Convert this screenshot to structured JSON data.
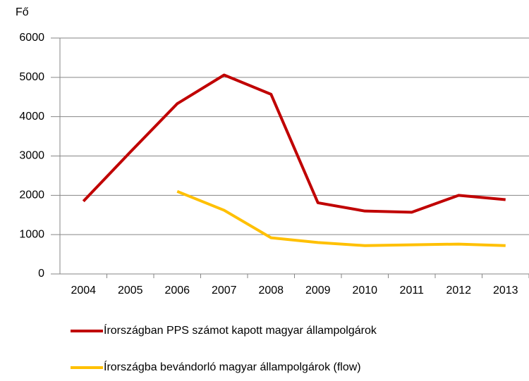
{
  "chart_data": {
    "type": "line",
    "y_label": "Fő",
    "categories": [
      "2004",
      "2005",
      "2006",
      "2007",
      "2008",
      "2009",
      "2010",
      "2011",
      "2012",
      "2013"
    ],
    "series": [
      {
        "name": "Írországban PPS számot kapott magyar állampolgárok",
        "color": "#c00000",
        "values": [
          1850,
          3100,
          4330,
          5060,
          4570,
          1810,
          1600,
          1570,
          2000,
          1890
        ]
      },
      {
        "name": "Írországba bevándorló magyar állampolgárok (flow)",
        "color": "#ffc000",
        "values": [
          null,
          null,
          2100,
          1620,
          920,
          800,
          720,
          740,
          760,
          720
        ]
      }
    ],
    "ylim": [
      0,
      6000
    ],
    "yticks": [
      0,
      1000,
      2000,
      3000,
      4000,
      5000,
      6000
    ],
    "grid": true,
    "legend": "bottom"
  }
}
